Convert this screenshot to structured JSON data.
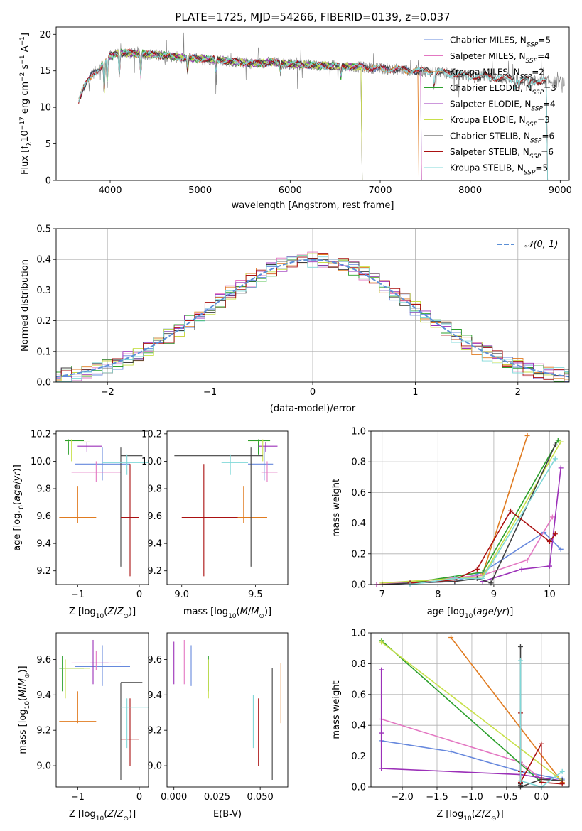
{
  "chart_data": [
    {
      "id": "spectrum",
      "type": "line",
      "title": "PLATE=1725, MJD=54266, FIBERID=0139, z=0.037",
      "xlabel": "wavelength [Angstrom, rest frame]",
      "ylabel": "Flux [f_λ10^-17 erg cm^-2 s^-1 A^-1]",
      "xlim": [
        3400,
        9100
      ],
      "ylim": [
        0,
        21
      ],
      "xticks": [
        4000,
        5000,
        6000,
        7000,
        8000,
        9000
      ],
      "yticks": [
        0,
        5,
        10,
        15,
        20
      ],
      "grid": false,
      "legend_position": "top-right",
      "data_color": "#808080",
      "continuum": {
        "x": [
          3650,
          3700,
          3800,
          3900,
          4000,
          4100,
          4200,
          4400,
          4600,
          4800,
          5000,
          5200,
          5400,
          5600,
          5800,
          6000,
          6200,
          6400,
          6600,
          6800,
          7000,
          7200,
          7400,
          7600,
          7800,
          8000,
          8200,
          8400,
          8600,
          8800,
          9000
        ],
        "y": [
          11.0,
          12.5,
          14.5,
          15.6,
          17.0,
          17.5,
          17.4,
          17.3,
          17.1,
          16.8,
          16.7,
          16.5,
          16.2,
          16.0,
          16.2,
          15.9,
          15.8,
          15.7,
          15.6,
          15.5,
          15.3,
          15.2,
          15.0,
          14.9,
          14.6,
          14.3,
          14.2,
          13.9,
          13.7,
          13.6,
          13.5
        ]
      },
      "series": [
        {
          "name": "Chabrier MILES, N_SSP=5",
          "label": "Chabrier MILES, N",
          "sub": "SSP",
          "suffix": "=5",
          "color": "#6688dd",
          "xrange": [
            3650,
            7450
          ]
        },
        {
          "name": "Salpeter MILES, N_SSP=4",
          "label": "Salpeter MILES, N",
          "sub": "SSP",
          "suffix": "=4",
          "color": "#e377c2",
          "xrange": [
            3650,
            7450
          ]
        },
        {
          "name": "Kroupa MILES, N_SSP=2",
          "label": "Kroupa MILES, N",
          "sub": "SSP",
          "suffix": "=2",
          "color": "#e07b20",
          "xrange": [
            3650,
            7420
          ]
        },
        {
          "name": "Chabrier ELODIE, N_SSP=3",
          "label": "Chabrier ELODIE, N",
          "sub": "SSP",
          "suffix": "=3",
          "color": "#2ca02c",
          "xrange": [
            3900,
            6790
          ]
        },
        {
          "name": "Salpeter ELODIE, N_SSP=4",
          "label": "Salpeter ELODIE, N",
          "sub": "SSP",
          "suffix": "=4",
          "color": "#9b30b8",
          "xrange": [
            3900,
            6790
          ]
        },
        {
          "name": "Kroupa ELODIE, N_SSP=3",
          "label": "Kroupa ELODIE, N",
          "sub": "SSP",
          "suffix": "=3",
          "color": "#c8e04a",
          "xrange": [
            3900,
            6790
          ]
        },
        {
          "name": "Chabrier STELIB, N_SSP=6",
          "label": "Chabrier STELIB, N",
          "sub": "SSP",
          "suffix": "=6",
          "color": "#404040",
          "xrange": [
            3650,
            8850
          ]
        },
        {
          "name": "Salpeter STELIB, N_SSP=6",
          "label": "Salpeter STELIB, N",
          "sub": "SSP",
          "suffix": "=6",
          "color": "#aa1111",
          "xrange": [
            3650,
            8850
          ]
        },
        {
          "name": "Kroupa STELIB, N_SSP=5",
          "label": "Kroupa STELIB, N",
          "sub": "SSP",
          "suffix": "=5",
          "color": "#80d8d8",
          "xrange": [
            3650,
            8850
          ]
        }
      ]
    },
    {
      "id": "residuals",
      "type": "step",
      "xlabel": "(data-model)/error",
      "ylabel": "Normed distribution",
      "xlim": [
        -2.5,
        2.5
      ],
      "ylim": [
        0,
        0.5
      ],
      "xticks": [
        -2,
        -1,
        0,
        1,
        2
      ],
      "yticks": [
        0.0,
        0.1,
        0.2,
        0.3,
        0.4,
        0.5
      ],
      "grid": true,
      "bin_width": 0.1,
      "gaussian": {
        "label": "𝒩(0, 1)",
        "mean": 0,
        "sigma": 1,
        "color": "#5b8fd6"
      },
      "legend_position": "top-right"
    },
    {
      "id": "age_vs_Z",
      "type": "errorbar",
      "xlabel": "Z [log10(Z/Z⊙)]",
      "ylabel": "age  [log10(age/yr)]",
      "xlim": [
        -1.35,
        0.15
      ],
      "ylim": [
        9.1,
        10.22
      ],
      "xticks": [
        -1,
        0
      ],
      "yticks": [
        9.2,
        9.4,
        9.6,
        9.8,
        10.0,
        10.2
      ],
      "points": [
        {
          "series": "Chabrier MILES",
          "x": -0.6,
          "xlo": -1.05,
          "xhi": -0.15,
          "y": 9.98,
          "ylo": 9.86,
          "yhi": 10.1
        },
        {
          "series": "Salpeter MILES",
          "x": -0.7,
          "xlo": -1.1,
          "xhi": -0.3,
          "y": 9.92,
          "ylo": 9.85,
          "yhi": 10.0
        },
        {
          "series": "Kroupa MILES",
          "x": -1.0,
          "xlo": -1.3,
          "xhi": -0.7,
          "y": 9.59,
          "ylo": 9.55,
          "yhi": 9.82
        },
        {
          "series": "Chabrier ELODIE",
          "x": -1.15,
          "xlo": -1.2,
          "xhi": -0.9,
          "y": 10.15,
          "ylo": 10.05,
          "yhi": 10.16
        },
        {
          "series": "Salpeter ELODIE",
          "x": -0.85,
          "xlo": -1.0,
          "xhi": -0.6,
          "y": 10.11,
          "ylo": 10.07,
          "yhi": 10.14
        },
        {
          "series": "Kroupa ELODIE",
          "x": -1.1,
          "xlo": -1.2,
          "xhi": -0.8,
          "y": 10.14,
          "ylo": 10.0,
          "yhi": 10.16
        },
        {
          "series": "Chabrier STELIB",
          "x": -0.3,
          "xlo": -0.3,
          "xhi": 0.05,
          "y": 10.04,
          "ylo": 9.23,
          "yhi": 10.1
        },
        {
          "series": "Salpeter STELIB",
          "x": -0.15,
          "xlo": -0.3,
          "xhi": 0.0,
          "y": 9.59,
          "ylo": 9.16,
          "yhi": 9.98
        },
        {
          "series": "Kroupa STELIB",
          "x": -0.2,
          "xlo": -0.6,
          "xhi": 0.15,
          "y": 9.99,
          "ylo": 9.9,
          "yhi": 10.05
        }
      ]
    },
    {
      "id": "age_vs_mass",
      "type": "errorbar",
      "xlabel": "mass [log10(M/M⊙)]",
      "xlim": [
        8.9,
        9.72
      ],
      "ylim": [
        9.1,
        10.22
      ],
      "xticks": [
        9.0,
        9.5
      ],
      "yticks": [
        9.2,
        9.4,
        9.6,
        9.8,
        10.0,
        10.2
      ],
      "points": [
        {
          "series": "Chabrier MILES",
          "x": 9.56,
          "xlo": 9.45,
          "xhi": 9.62,
          "y": 9.98,
          "ylo": 9.86,
          "yhi": 10.1
        },
        {
          "series": "Salpeter MILES",
          "x": 9.58,
          "xlo": 9.54,
          "xhi": 9.65,
          "y": 9.92,
          "ylo": 9.85,
          "yhi": 10.0
        },
        {
          "series": "Kroupa MILES",
          "x": 9.42,
          "xlo": 9.3,
          "xhi": 9.58,
          "y": 9.59,
          "ylo": 9.55,
          "yhi": 9.82
        },
        {
          "series": "Chabrier ELODIE",
          "x": 9.52,
          "xlo": 9.45,
          "xhi": 9.6,
          "y": 10.15,
          "ylo": 10.05,
          "yhi": 10.16
        },
        {
          "series": "Salpeter ELODIE",
          "x": 9.57,
          "xlo": 9.52,
          "xhi": 9.65,
          "y": 10.11,
          "ylo": 10.07,
          "yhi": 10.14
        },
        {
          "series": "Kroupa ELODIE",
          "x": 9.55,
          "xlo": 9.45,
          "xhi": 9.6,
          "y": 10.14,
          "ylo": 10.0,
          "yhi": 10.16
        },
        {
          "series": "Chabrier STELIB",
          "x": 9.47,
          "xlo": 8.95,
          "xhi": 9.55,
          "y": 10.04,
          "ylo": 9.23,
          "yhi": 10.1
        },
        {
          "series": "Salpeter STELIB",
          "x": 9.15,
          "xlo": 9.0,
          "xhi": 9.38,
          "y": 9.59,
          "ylo": 9.16,
          "yhi": 9.98
        },
        {
          "series": "Kroupa STELIB",
          "x": 9.33,
          "xlo": 9.27,
          "xhi": 9.45,
          "y": 9.99,
          "ylo": 9.9,
          "yhi": 10.05
        }
      ]
    },
    {
      "id": "weight_vs_age",
      "type": "line",
      "xlabel": "age  [log10(age/yr)]",
      "ylabel": "mass weight",
      "xlim": [
        6.8,
        10.35
      ],
      "ylim": [
        0,
        1
      ],
      "xticks": [
        7,
        8,
        9,
        10
      ],
      "yticks": [
        0.0,
        0.2,
        0.4,
        0.6,
        0.8,
        1.0
      ],
      "grid": true,
      "lines": [
        {
          "series": "Chabrier MILES",
          "x": [
            6.9,
            8.3,
            8.8,
            9.9,
            10.2
          ],
          "y": [
            0.0,
            0.02,
            0.08,
            0.34,
            0.23
          ]
        },
        {
          "series": "Salpeter MILES",
          "x": [
            6.9,
            8.8,
            9.6,
            10.05
          ],
          "y": [
            0.0,
            0.06,
            0.16,
            0.44
          ]
        },
        {
          "series": "Kroupa MILES",
          "x": [
            8.8,
            9.6
          ],
          "y": [
            0.07,
            0.97
          ]
        },
        {
          "series": "Chabrier ELODIE",
          "x": [
            7.5,
            8.8,
            10.15
          ],
          "y": [
            0.01,
            0.08,
            0.94
          ]
        },
        {
          "series": "Salpeter ELODIE",
          "x": [
            8.8,
            9.5,
            10.0,
            10.2
          ],
          "y": [
            0.02,
            0.1,
            0.12,
            0.76
          ]
        },
        {
          "series": "Kroupa ELODIE",
          "x": [
            7.0,
            8.8,
            10.2
          ],
          "y": [
            0.01,
            0.05,
            0.93
          ]
        },
        {
          "series": "Chabrier STELIB",
          "x": [
            7.0,
            7.5,
            8.3,
            8.7,
            8.95,
            10.1
          ],
          "y": [
            0.0,
            0.01,
            0.02,
            0.04,
            0.01,
            0.91
          ]
        },
        {
          "series": "Salpeter STELIB",
          "x": [
            7.5,
            8.3,
            8.7,
            9.3,
            10.0,
            10.1
          ],
          "y": [
            0.01,
            0.03,
            0.1,
            0.48,
            0.28,
            0.33
          ]
        },
        {
          "series": "Kroupa STELIB",
          "x": [
            7.5,
            8.3,
            8.8,
            10.1
          ],
          "y": [
            0.0,
            0.04,
            0.04,
            0.82
          ]
        }
      ]
    },
    {
      "id": "mass_vs_Z",
      "type": "errorbar",
      "xlabel": "Z [log10(Z/Z⊙)]",
      "ylabel": "mass [log10(M/M⊙)]",
      "xlim": [
        -1.35,
        0.15
      ],
      "ylim": [
        8.88,
        9.75
      ],
      "xticks": [
        -1,
        0
      ],
      "yticks": [
        9.0,
        9.2,
        9.4,
        9.6
      ],
      "points": [
        {
          "series": "Chabrier MILES",
          "x": -0.6,
          "xlo": -1.05,
          "xhi": -0.15,
          "y": 9.56,
          "ylo": 9.45,
          "yhi": 9.68
        },
        {
          "series": "Salpeter MILES",
          "x": -0.7,
          "xlo": -1.1,
          "xhi": -0.3,
          "y": 9.58,
          "ylo": 9.54,
          "yhi": 9.65
        },
        {
          "series": "Kroupa MILES",
          "x": -1.0,
          "xlo": -1.3,
          "xhi": -0.7,
          "y": 9.25,
          "ylo": 9.24,
          "yhi": 9.42
        },
        {
          "series": "Chabrier ELODIE",
          "x": -1.25,
          "xlo": -1.3,
          "xhi": -0.9,
          "y": 9.55,
          "ylo": 9.42,
          "yhi": 9.62
        },
        {
          "series": "Salpeter ELODIE",
          "x": -0.75,
          "xlo": -0.8,
          "xhi": -0.5,
          "y": 9.58,
          "ylo": 9.46,
          "yhi": 9.71
        },
        {
          "series": "Kroupa ELODIE",
          "x": -1.2,
          "xlo": -1.25,
          "xhi": -0.8,
          "y": 9.55,
          "ylo": 9.38,
          "yhi": 9.6
        },
        {
          "series": "Chabrier STELIB",
          "x": -0.3,
          "xlo": -0.3,
          "xhi": 0.05,
          "y": 9.47,
          "ylo": 8.92,
          "yhi": 9.47
        },
        {
          "series": "Salpeter STELIB",
          "x": -0.15,
          "xlo": -0.3,
          "xhi": 0.0,
          "y": 9.15,
          "ylo": 9.0,
          "yhi": 9.38
        },
        {
          "series": "Kroupa STELIB",
          "x": -0.2,
          "xlo": -0.3,
          "xhi": 0.15,
          "y": 9.33,
          "ylo": 9.1,
          "yhi": 9.38
        }
      ]
    },
    {
      "id": "mass_vs_ebv",
      "type": "errorbar",
      "xlabel": "E(B-V)",
      "xlim": [
        -0.004,
        0.066
      ],
      "ylim": [
        8.88,
        9.75
      ],
      "xticks": [
        0.0,
        0.025,
        0.05
      ],
      "yticks": [
        9.0,
        9.2,
        9.4,
        9.6
      ],
      "points": [
        {
          "series": "Chabrier MILES",
          "x": 0.01,
          "y": 9.56,
          "ylo": 9.45,
          "yhi": 9.68
        },
        {
          "series": "Salpeter MILES",
          "x": 0.006,
          "y": 9.58,
          "ylo": 9.46,
          "yhi": 9.71
        },
        {
          "series": "Kroupa MILES",
          "x": 0.062,
          "y": 9.42,
          "ylo": 9.24,
          "yhi": 9.58
        },
        {
          "series": "Chabrier ELODIE",
          "x": 0.02,
          "y": 9.55,
          "ylo": 9.42,
          "yhi": 9.62
        },
        {
          "series": "Salpeter ELODIE",
          "x": 0.0,
          "y": 9.58,
          "ylo": 9.46,
          "yhi": 9.7
        },
        {
          "series": "Kroupa ELODIE",
          "x": 0.02,
          "y": 9.5,
          "ylo": 9.38,
          "yhi": 9.6
        },
        {
          "series": "Chabrier STELIB",
          "x": 0.057,
          "y": 9.2,
          "ylo": 8.92,
          "yhi": 9.55
        },
        {
          "series": "Salpeter STELIB",
          "x": 0.049,
          "y": 9.2,
          "ylo": 9.0,
          "yhi": 9.38
        },
        {
          "series": "Kroupa STELIB",
          "x": 0.046,
          "y": 9.25,
          "ylo": 9.1,
          "yhi": 9.4
        }
      ]
    },
    {
      "id": "weight_vs_Z",
      "type": "line",
      "xlabel": "Z [log10(Z/Z⊙)]",
      "ylabel": "mass weight",
      "xlim": [
        -2.45,
        0.4
      ],
      "ylim": [
        0,
        1
      ],
      "xticks": [
        -2.0,
        -1.5,
        -1.0,
        -0.5,
        0.0
      ],
      "yticks": [
        0.0,
        0.2,
        0.4,
        0.6,
        0.8,
        1.0
      ],
      "grid": true,
      "lines": [
        {
          "series": "Chabrier MILES",
          "x": [
            -2.3,
            -1.3,
            -0.3,
            0.3
          ],
          "y": [
            0.3,
            0.23,
            0.1,
            0.05
          ]
        },
        {
          "series": "Salpeter MILES",
          "x": [
            -2.3,
            -0.3,
            0.0
          ],
          "y": [
            0.44,
            0.16,
            0.05
          ]
        },
        {
          "series": "Kroupa MILES",
          "x": [
            -1.3,
            0.3
          ],
          "y": [
            0.97,
            0.03
          ]
        },
        {
          "series": "Chabrier ELODIE",
          "x": [
            -2.3,
            0.0
          ],
          "y": [
            0.95,
            0.03
          ]
        },
        {
          "series": "Salpeter ELODIE",
          "x": [
            -2.3,
            -2.3,
            -2.3,
            -0.3,
            0.0,
            0.3
          ],
          "y": [
            0.76,
            0.35,
            0.12,
            0.08,
            0.06,
            0.04
          ]
        },
        {
          "series": "Kroupa ELODIE",
          "x": [
            -2.3,
            0.3
          ],
          "y": [
            0.94,
            0.04
          ]
        },
        {
          "series": "Chabrier STELIB",
          "x": [
            -0.3,
            -0.3,
            -0.3,
            -0.3,
            0.0,
            0.3
          ],
          "y": [
            0.91,
            0.02,
            0.01,
            0.0,
            0.05,
            0.04
          ]
        },
        {
          "series": "Salpeter STELIB",
          "x": [
            -0.3,
            -0.3,
            -0.3,
            0.0,
            0.0,
            0.3
          ],
          "y": [
            0.48,
            0.1,
            0.03,
            0.28,
            0.03,
            0.02
          ]
        },
        {
          "series": "Kroupa STELIB",
          "x": [
            -0.3,
            -0.3,
            0.0,
            0.3
          ],
          "y": [
            0.82,
            0.04,
            0.0,
            0.1
          ]
        }
      ]
    }
  ]
}
